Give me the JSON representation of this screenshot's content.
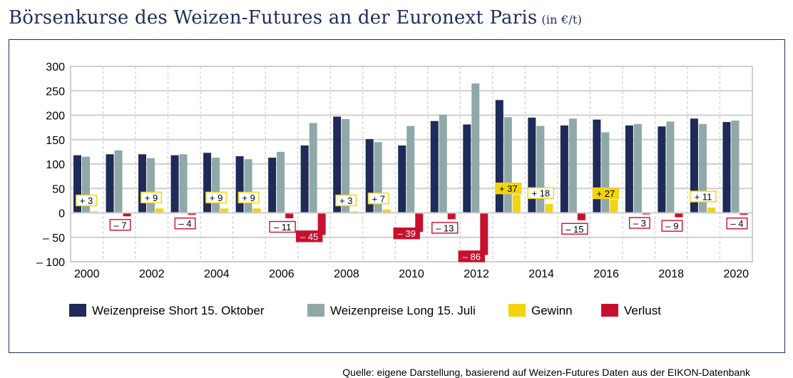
{
  "title": "Börsenkurse des Weizen-Futures an der Euronext Paris",
  "unit": "(in €/t)",
  "source": "Quelle: eigene Darstellung, basierend auf Weizen-Futures Daten aus der EIKON-Datenbank",
  "colors": {
    "short": "#1e2a57",
    "long": "#8fa9a8",
    "gewinn": "#f2d40f",
    "verlust": "#c8102e",
    "grid": "#cfcfcf",
    "plotBorder": "#cfcfcf",
    "text": "#1f2d5a"
  },
  "chart_data": {
    "type": "bar",
    "title": "Börsenkurse des Weizen-Futures an der Euronext Paris (in €/t)",
    "xlabel": "",
    "ylabel": "",
    "ylim": [
      -100,
      300
    ],
    "yticks": [
      300,
      250,
      200,
      150,
      100,
      50,
      0,
      -50,
      -100
    ],
    "ytick_labels": [
      "300",
      "250",
      "200",
      "150",
      "100",
      "50",
      "0",
      "– 50",
      "– 100"
    ],
    "categories": [
      "2000",
      "2001",
      "2002",
      "2003",
      "2004",
      "2005",
      "2006",
      "2007",
      "2008",
      "2009",
      "2010",
      "2011",
      "2012",
      "2013",
      "2014",
      "2015",
      "2016",
      "2017",
      "2018",
      "2019",
      "2020"
    ],
    "xtick_labels": [
      "2000",
      "",
      "2002",
      "",
      "2004",
      "",
      "2006",
      "",
      "2008",
      "",
      "2010",
      "",
      "2012",
      "",
      "2014",
      "",
      "2016",
      "",
      "2018",
      "",
      "2020"
    ],
    "series": [
      {
        "name": "Weizenpreise Short 15. Oktober",
        "values": [
          118,
          120,
          120,
          118,
          123,
          116,
          113,
          138,
          197,
          151,
          138,
          188,
          181,
          231,
          195,
          179,
          191,
          179,
          177,
          193,
          186
        ]
      },
      {
        "name": "Weizenpreise Long 15. Juli",
        "values": [
          115,
          128,
          112,
          120,
          113,
          110,
          125,
          184,
          192,
          145,
          178,
          201,
          265,
          196,
          178,
          193,
          165,
          182,
          187,
          182,
          189
        ]
      },
      {
        "name": "Gewinn",
        "values": [
          3,
          0,
          9,
          0,
          9,
          9,
          0,
          0,
          3,
          7,
          0,
          0,
          0,
          37,
          18,
          0,
          27,
          0,
          0,
          11,
          0
        ]
      },
      {
        "name": "Verlust",
        "values": [
          0,
          -7,
          0,
          -4,
          0,
          0,
          -11,
          -45,
          0,
          0,
          -39,
          -13,
          -86,
          0,
          0,
          -15,
          0,
          -3,
          -9,
          0,
          -4
        ]
      }
    ],
    "data_labels": [
      "+ 3",
      "– 7",
      "+ 9",
      "– 4",
      "+ 9",
      "+ 9",
      "– 11",
      "– 45",
      "+ 3",
      "+ 7",
      "– 39",
      "– 13",
      "– 86",
      "+ 37",
      "+ 18",
      "– 15",
      "+ 27",
      "– 3",
      "– 9",
      "+ 11",
      "– 4"
    ],
    "legend": [
      "Weizenpreise Short 15. Oktober",
      "Weizenpreise Long 15. Juli",
      "Gewinn",
      "Verlust"
    ],
    "legend_position": "bottom",
    "grid": true
  }
}
